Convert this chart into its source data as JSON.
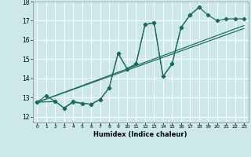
{
  "xlabel": "Humidex (Indice chaleur)",
  "bg_color": "#cce8e8",
  "grid_color": "#ffffff",
  "line_color": "#1a6b5a",
  "xlim": [
    -0.5,
    23.5
  ],
  "ylim": [
    11.7,
    18.0
  ],
  "xticks": [
    0,
    1,
    2,
    3,
    4,
    5,
    6,
    7,
    8,
    9,
    10,
    11,
    12,
    13,
    14,
    15,
    16,
    17,
    18,
    19,
    20,
    21,
    22,
    23
  ],
  "yticks": [
    12,
    13,
    14,
    15,
    16,
    17,
    18
  ],
  "series_zigzag": {
    "x": [
      0,
      1,
      2,
      3,
      4,
      5,
      6,
      7,
      8,
      9,
      10,
      11,
      12,
      13,
      14,
      15,
      16,
      17,
      18,
      19,
      20,
      21,
      22,
      23
    ],
    "y": [
      12.75,
      13.1,
      12.8,
      12.45,
      12.8,
      12.7,
      12.65,
      12.9,
      13.5,
      15.3,
      14.5,
      14.75,
      16.8,
      16.9,
      14.1,
      14.75,
      16.65,
      17.3,
      17.7,
      17.3,
      17.0,
      17.1,
      17.1,
      17.1
    ]
  },
  "series_short": {
    "x": [
      0,
      2,
      3,
      4,
      5,
      6,
      7,
      8,
      9,
      10,
      11,
      12,
      13,
      14,
      15,
      16,
      17,
      18
    ],
    "y": [
      12.75,
      12.8,
      12.45,
      12.75,
      12.7,
      12.65,
      12.9,
      13.5,
      15.3,
      14.5,
      14.75,
      16.8,
      16.9,
      14.1,
      14.75,
      16.65,
      17.3,
      17.7
    ]
  },
  "diag1": {
    "x": [
      0,
      23
    ],
    "y": [
      12.75,
      16.75
    ]
  },
  "diag2": {
    "x": [
      0,
      23
    ],
    "y": [
      12.75,
      16.6
    ]
  }
}
